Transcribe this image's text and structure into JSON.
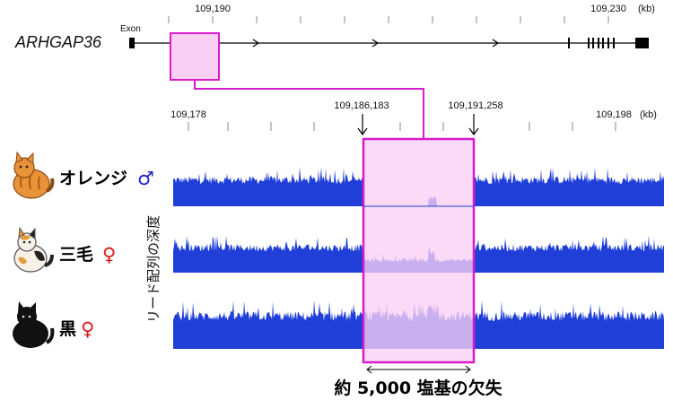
{
  "gene": {
    "name": "ARHGAP36",
    "exon_label": "Exon",
    "ticks": [
      "109,190",
      "109,230"
    ],
    "unit": "(kb)"
  },
  "zoom": {
    "ticks": [
      "109,178",
      "109,198"
    ],
    "breakpoints": [
      "109,186,183",
      "109,191,258"
    ],
    "unit": "(kb)"
  },
  "y_axis_label": "リード配列の深度",
  "tracks": [
    {
      "name": "オレンジ",
      "sex_symbol": "♂",
      "sex_color": "#1f1fcc",
      "cat": "orange-cat"
    },
    {
      "name": "三毛",
      "sex_symbol": "♀",
      "sex_color": "#d81b1b",
      "cat": "calico-cat"
    },
    {
      "name": "黒",
      "sex_symbol": "♀",
      "sex_color": "#d81b1b",
      "cat": "black-cat"
    }
  ],
  "deletion_label": "約 5,000 塩基の欠失",
  "colors": {
    "coverage": "#1f3fd8",
    "highlight_fill": "#f9d0f3",
    "highlight_stroke": "#d81bcc"
  }
}
